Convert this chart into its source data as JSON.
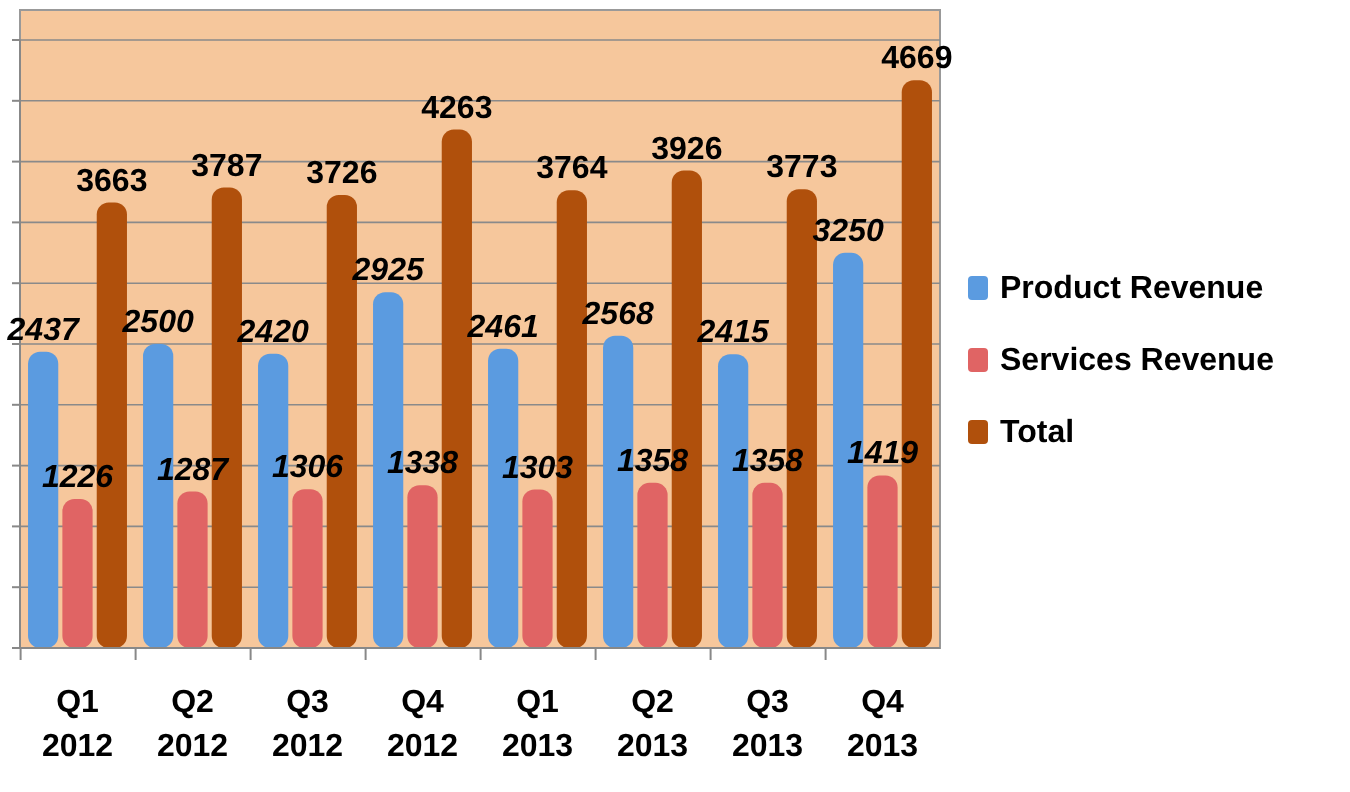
{
  "chart_data": {
    "type": "bar",
    "categories": [
      "Q1\n2012",
      "Q2\n2012",
      "Q3\n2012",
      "Q4\n2012",
      "Q1\n2013",
      "Q2\n2013",
      "Q3\n2013",
      "Q4\n2013"
    ],
    "series": [
      {
        "name": "Product Revenue",
        "color": "#5b9be0",
        "values": [
          2437,
          2500,
          2420,
          2925,
          2461,
          2568,
          2415,
          3250
        ]
      },
      {
        "name": "Services Revenue",
        "color": "#e06464",
        "values": [
          1226,
          1287,
          1306,
          1338,
          1303,
          1358,
          1358,
          1419
        ]
      },
      {
        "name": "Total",
        "color": "#b0500c",
        "values": [
          3663,
          3787,
          3726,
          4263,
          3764,
          3926,
          3773,
          4669
        ]
      }
    ],
    "ylim": [
      0,
      5000
    ],
    "yticks": [
      {
        "value": 0,
        "label": null
      },
      {
        "value": 500,
        "label": null
      },
      {
        "value": 1000,
        "label": null
      },
      {
        "value": 1500,
        "label": null
      },
      {
        "value": 2000,
        "label": null
      },
      {
        "value": 2500,
        "label": null
      },
      {
        "value": 3000,
        "label": null
      },
      {
        "value": 3500,
        "label": null
      },
      {
        "value": 4000,
        "label": null
      },
      {
        "value": 4500,
        "label": null
      },
      {
        "value": 5000,
        "label": null
      }
    ],
    "grid": "y",
    "tick_labels": "x",
    "legend": "right",
    "data_labels": true
  }
}
